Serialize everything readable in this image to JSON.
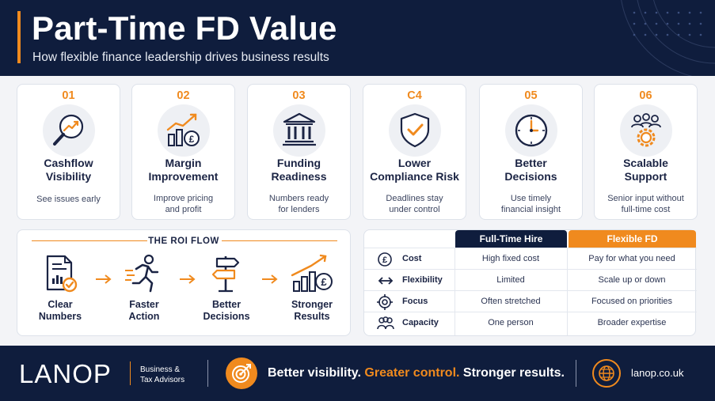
{
  "header": {
    "title": "Part-Time FD Value",
    "subtitle": "How flexible finance leadership drives business results"
  },
  "colors": {
    "navy": "#0f1d3d",
    "orange": "#f08a1e",
    "card_bg": "#ffffff",
    "page_bg": "#f3f4f7"
  },
  "cards": [
    {
      "num": "01",
      "title_line1": "Cashflow",
      "title_line2": "Visibility",
      "desc_line1": "See issues early",
      "desc_line2": "",
      "icon": "magnifier-trend-icon"
    },
    {
      "num": "02",
      "title_line1": "Margin",
      "title_line2": "Improvement",
      "desc_line1": "Improve pricing",
      "desc_line2": "and profit",
      "icon": "bar-chart-pound-icon"
    },
    {
      "num": "03",
      "title_line1": "Funding",
      "title_line2": "Readiness",
      "desc_line1": "Numbers ready",
      "desc_line2": "for lenders",
      "icon": "bank-icon"
    },
    {
      "num": "C4",
      "title_line1": "Lower",
      "title_line2": "Compliance Risk",
      "desc_line1": "Deadlines stay",
      "desc_line2": "under control",
      "icon": "shield-check-icon"
    },
    {
      "num": "05",
      "title_line1": "Better",
      "title_line2": "Decisions",
      "desc_line1": "Use timely",
      "desc_line2": "financial insight",
      "icon": "clock-icon"
    },
    {
      "num": "06",
      "title_line1": "Scalable",
      "title_line2": "Support",
      "desc_line1": "Senior input without",
      "desc_line2": "full-time cost",
      "icon": "team-gear-icon"
    }
  ],
  "roi": {
    "title": "THE ROI FLOW",
    "steps": [
      {
        "line1": "Clear",
        "line2": "Numbers",
        "icon": "report-check-icon"
      },
      {
        "line1": "Faster",
        "line2": "Action",
        "icon": "runner-icon"
      },
      {
        "line1": "Better",
        "line2": "Decisions",
        "icon": "signpost-icon"
      },
      {
        "line1": "Stronger",
        "line2": "Results",
        "icon": "growth-chart-pound-icon"
      }
    ]
  },
  "comparison": {
    "col1_header": "Full-Time Hire",
    "col2_header": "Flexible FD",
    "rows": [
      {
        "label": "Cost",
        "col1": "High fixed cost",
        "col2": "Pay for what you need",
        "icon": "pound-coin-icon"
      },
      {
        "label": "Flexibility",
        "col1": "Limited",
        "col2": "Scale up or down",
        "icon": "double-arrow-icon"
      },
      {
        "label": "Focus",
        "col1": "Often stretched",
        "col2": "Focused on priorities",
        "icon": "crosshair-icon"
      },
      {
        "label": "Capacity",
        "col1": "One person",
        "col2": "Broader expertise",
        "icon": "people-icon"
      }
    ]
  },
  "footer": {
    "logo": "LANOP",
    "tagline_line1": "Business &",
    "tagline_line2": "Tax Advisors",
    "slogan_part1": "Better visibility.",
    "slogan_part2": "Greater control.",
    "slogan_part3": "Stronger results.",
    "url": "lanop.co.uk"
  }
}
